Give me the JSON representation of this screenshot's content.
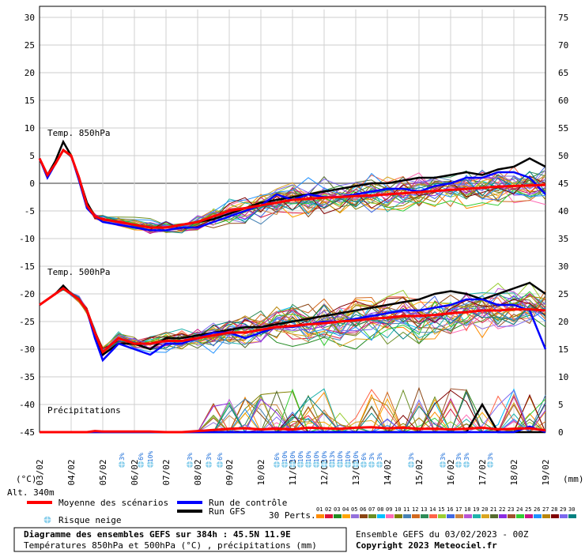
{
  "chart_data": {
    "type": "line",
    "left_axis_unit": "(°C)",
    "right_axis_unit": "(mm)",
    "left_ticks": [
      30,
      25,
      20,
      15,
      10,
      5,
      0,
      -5,
      -10,
      -15,
      -20,
      -25,
      -30,
      -35,
      -40,
      -45
    ],
    "right_ticks": [
      75,
      70,
      65,
      60,
      55,
      50,
      45,
      40,
      35,
      30,
      25,
      20,
      15,
      10,
      5,
      0
    ],
    "dates": [
      "03/02",
      "04/02",
      "05/02",
      "06/02",
      "07/02",
      "08/02",
      "09/02",
      "10/02",
      "11/02",
      "12/02",
      "13/02",
      "14/02",
      "15/02",
      "16/02",
      "17/02",
      "18/02",
      "19/02"
    ],
    "panel_labels": {
      "t850": "Temp. 850hPa",
      "t500": "Temp. 500hPa",
      "precip": "Précipitations"
    },
    "x_days": [
      0,
      0.25,
      0.5,
      0.75,
      1,
      1.25,
      1.5,
      1.75,
      2,
      2.5,
      3,
      3.5,
      4,
      4.5,
      5,
      5.5,
      6,
      6.5,
      7,
      7.5,
      8,
      8.5,
      9,
      9.5,
      10,
      10.5,
      11,
      11.5,
      12,
      12.5,
      13,
      13.5,
      14,
      14.5,
      15,
      15.5,
      16
    ],
    "series": [
      {
        "name": "Moyenne des scénarios",
        "color": "#ff0000",
        "t850": [
          4.5,
          1.5,
          3.5,
          6,
          5,
          1,
          -4,
          -6,
          -6.5,
          -7,
          -7.5,
          -8,
          -8,
          -7.5,
          -7,
          -6,
          -5,
          -4.5,
          -4,
          -3.5,
          -3,
          -2.8,
          -2.6,
          -2.5,
          -2.3,
          -2.2,
          -2,
          -1.8,
          -1.6,
          -1.4,
          -1.2,
          -1,
          -0.8,
          -0.6,
          -0.5,
          -0.4,
          -0.3
        ],
        "t500": [
          -22,
          -21,
          -20,
          -19,
          -20,
          -21,
          -23,
          -27,
          -30.5,
          -28,
          -29,
          -29,
          -28.5,
          -28.5,
          -28,
          -27.5,
          -27,
          -27,
          -26.5,
          -26,
          -25.8,
          -25.5,
          -25.3,
          -25,
          -24.8,
          -24.5,
          -24.3,
          -24,
          -24,
          -23.8,
          -23.5,
          -23.3,
          -23,
          -23,
          -22.8,
          -22.8,
          -23
        ],
        "precip": [
          0,
          0,
          0,
          0,
          0,
          0,
          0,
          0.2,
          0.1,
          0.1,
          0.1,
          0.1,
          0,
          0,
          0.2,
          0.4,
          0.6,
          0.7,
          0.5,
          0.6,
          0.5,
          0.8,
          0.7,
          0.6,
          0.8,
          0.9,
          0.7,
          0.8,
          0.6,
          0.6,
          0.5,
          0.6,
          0.8,
          0.5,
          0.6,
          0.7,
          0.3
        ]
      },
      {
        "name": "Run de contrôle",
        "color": "#0000ff",
        "t850": [
          4.5,
          1,
          3.5,
          6,
          5,
          0.5,
          -4.5,
          -6,
          -7,
          -7.5,
          -8,
          -8.5,
          -8.5,
          -8,
          -8,
          -7,
          -6,
          -5,
          -4,
          -2,
          -3,
          -2,
          -2.5,
          -2.5,
          -2,
          -1.5,
          -1,
          -1,
          -1.5,
          -0.5,
          0,
          1,
          1,
          2,
          2,
          1,
          -2
        ],
        "t500": [
          -22,
          -21,
          -20,
          -19,
          -20,
          -21,
          -23,
          -28,
          -32,
          -29,
          -30,
          -31,
          -29,
          -29,
          -28,
          -27,
          -27,
          -28,
          -27,
          -26,
          -26,
          -25.5,
          -25,
          -25,
          -24.5,
          -24,
          -23.5,
          -23,
          -23,
          -22.5,
          -22,
          -21,
          -21,
          -22,
          -22,
          -23,
          -30
        ],
        "precip": [
          0,
          0,
          0,
          0,
          0,
          0,
          0,
          0,
          0,
          0,
          0,
          0,
          0,
          0,
          0,
          0,
          0,
          0,
          0,
          0,
          0,
          0,
          0,
          0,
          0,
          0,
          0,
          0,
          0,
          0,
          0,
          0,
          0,
          0,
          0,
          1,
          0
        ]
      },
      {
        "name": "Run GFS",
        "color": "#000000",
        "t850": [
          4.5,
          1.5,
          4,
          7.5,
          5,
          1,
          -3.5,
          -6,
          -6.5,
          -7,
          -7.5,
          -8,
          -8,
          -7.5,
          -7,
          -6.5,
          -5.5,
          -4.5,
          -3.5,
          -3,
          -2.5,
          -2,
          -1.5,
          -1,
          -0.5,
          0,
          0,
          0.5,
          1,
          1,
          1.5,
          2,
          1.5,
          2.5,
          3,
          4.5,
          3
        ],
        "t500": [
          -22,
          -21,
          -20,
          -18.5,
          -20,
          -21,
          -23,
          -27,
          -31,
          -29,
          -29,
          -30,
          -28,
          -28,
          -27.5,
          -27,
          -26.5,
          -26,
          -26,
          -25.5,
          -25,
          -24.5,
          -24,
          -23.5,
          -23,
          -22.5,
          -22,
          -21.5,
          -21,
          -20,
          -19.5,
          -20,
          -21,
          -20,
          -19,
          -18,
          -20
        ],
        "precip": [
          0,
          0,
          0,
          0,
          0,
          0,
          0,
          0,
          0,
          0,
          0,
          0,
          0,
          0,
          0,
          0,
          0,
          0,
          0,
          0,
          0,
          0,
          0,
          0,
          0,
          0,
          0,
          0,
          0,
          0,
          0,
          0,
          5,
          0,
          0,
          0,
          0
        ]
      }
    ],
    "perturbation_colors": [
      "#ff8c00",
      "#dc143c",
      "#228b22",
      "#ffa500",
      "#9370db",
      "#8b4513",
      "#6b8e23",
      "#00bfff",
      "#ff69b4",
      "#808000",
      "#4682b4",
      "#d2691e",
      "#2e8b57",
      "#ff6347",
      "#9acd32",
      "#4169e1",
      "#cd853f",
      "#ba55d3",
      "#20b2aa",
      "#daa520",
      "#556b2f",
      "#8a2be2",
      "#a0522d",
      "#32cd32",
      "#c71585",
      "#1e90ff",
      "#b8860b",
      "#800000",
      "#7b68ee",
      "#008080"
    ],
    "snow_risk_labels": [
      "3%",
      "6%",
      "10%",
      "3%",
      "3%",
      "6%",
      "6%",
      "10%",
      "10%",
      "10%",
      "10%",
      "10%",
      "10%",
      "13%",
      "10%",
      "10%",
      "10%",
      "6%",
      "3%",
      "3%",
      "3%",
      "3%",
      "3%",
      "3%",
      "3%"
    ]
  },
  "altitude_label": "Alt. 340m",
  "legend": {
    "mean": "Moyenne des scénarios",
    "control": "Run de contrôle",
    "gfs": "Run GFS",
    "perts": "30 Perts.",
    "snow": "Risque neige",
    "pert_numbers": [
      "01",
      "02",
      "03",
      "04",
      "05",
      "06",
      "07",
      "08",
      "09",
      "10",
      "11",
      "12",
      "13",
      "14",
      "15",
      "16",
      "17",
      "18",
      "19",
      "20",
      "21",
      "22",
      "23",
      "24",
      "25",
      "26",
      "27",
      "28",
      "29",
      "30"
    ]
  },
  "footer": {
    "title": "Diagramme des ensembles GEFS sur 384h : 45.5N 11.9E",
    "subtitle": "Températures 850hPa et 500hPa (°C) , précipitations (mm)",
    "run_info": "Ensemble GEFS du 03/02/2023 - 00Z",
    "copyright": "Copyright 2023 Meteociel.fr"
  }
}
